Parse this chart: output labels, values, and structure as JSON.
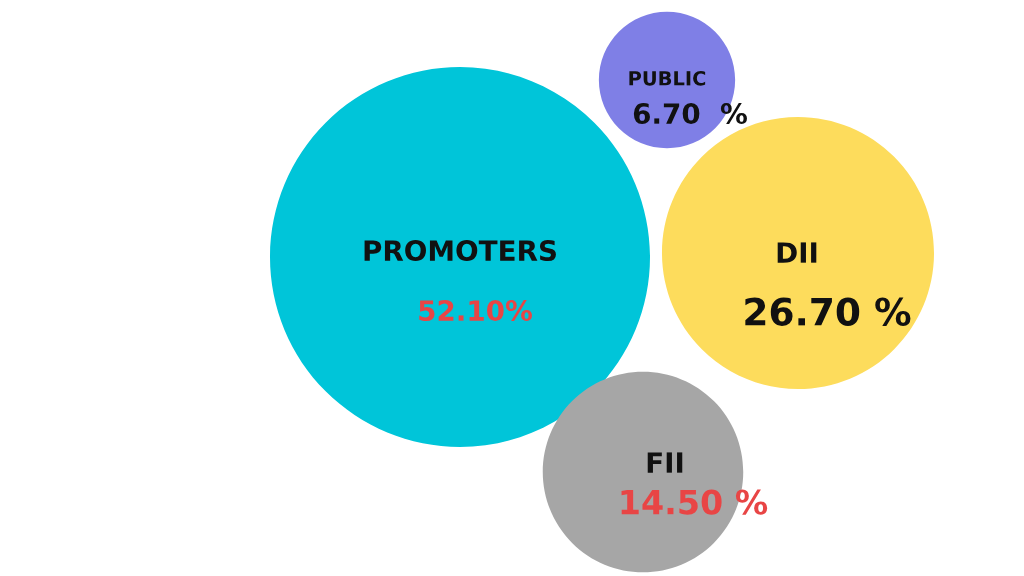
{
  "chart_data": {
    "type": "other",
    "categories": [
      "PROMOTERS",
      "PUBLIC",
      "DII",
      "FII"
    ],
    "values": [
      52.1,
      6.7,
      26.7,
      14.5
    ],
    "value_labels": [
      "52.10%",
      "6.70  %",
      "26.70 %",
      "14.50 %"
    ],
    "colors": [
      "#00c5d9",
      "#7f7fe6",
      "#fddc5c",
      "#a6a6a6"
    ]
  }
}
